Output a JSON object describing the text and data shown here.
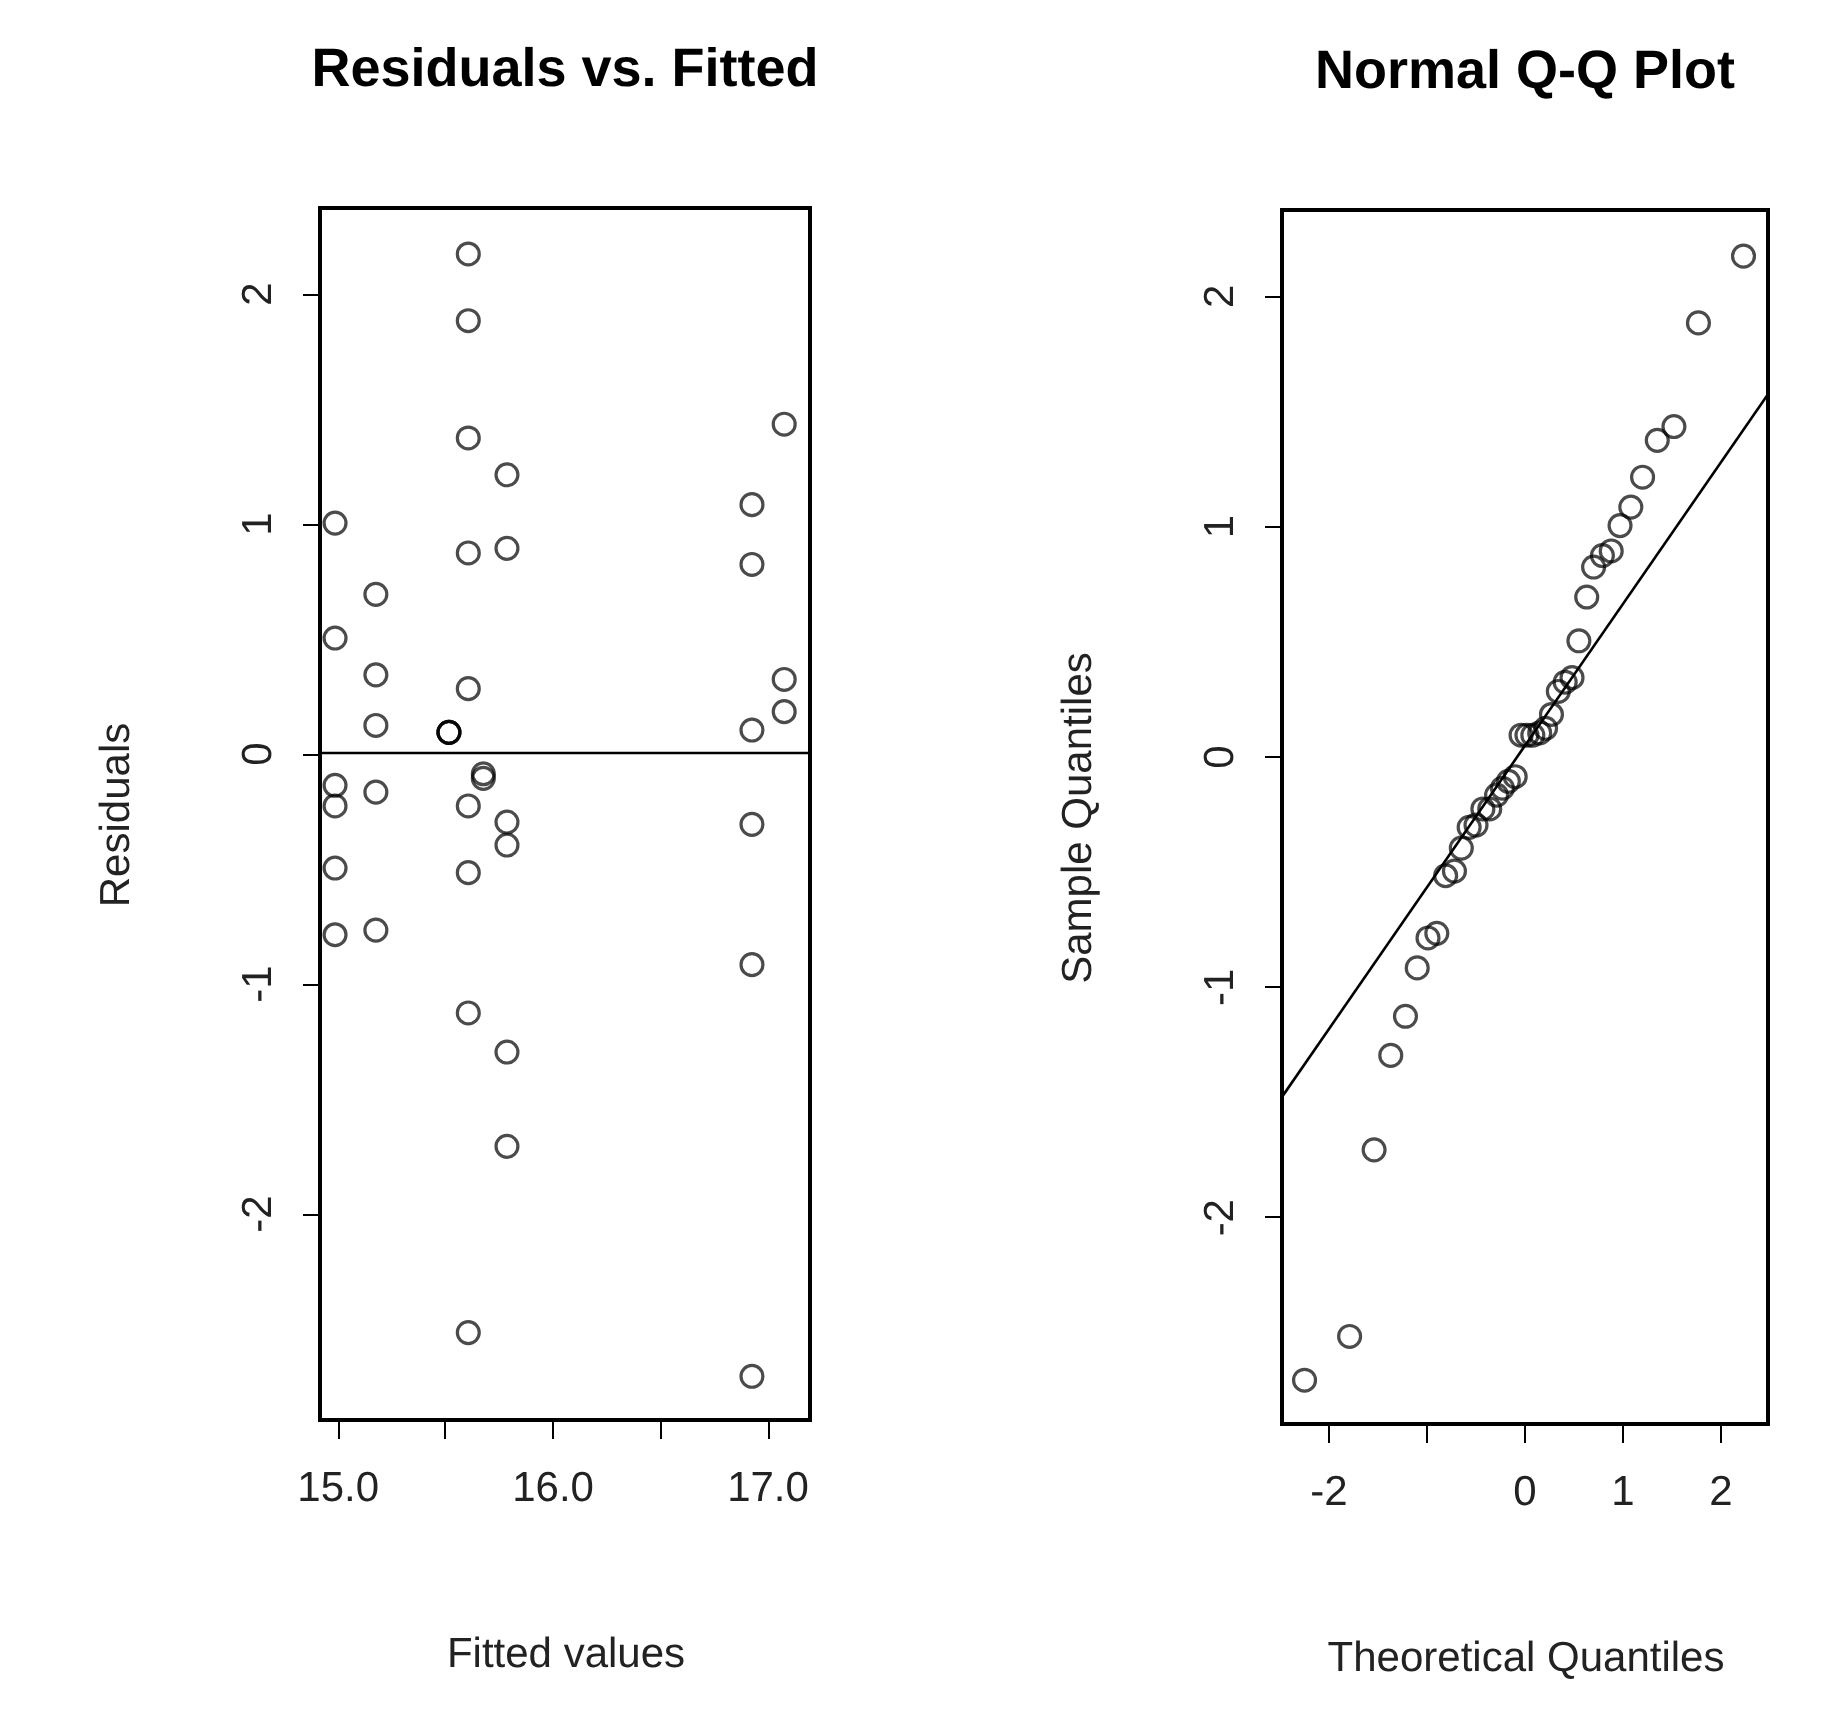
{
  "chart_data": [
    {
      "type": "scatter",
      "title": "Residuals vs. Fitted",
      "xlabel": "Fitted values",
      "ylabel": "Residuals",
      "marker": "circle",
      "grid": false,
      "xlim": [
        14.92,
        17.2
      ],
      "ylim": [
        -2.9,
        2.37
      ],
      "xticks": [
        {
          "value": 15,
          "label": "15.0"
        },
        {
          "value": 15.5,
          "label": null
        },
        {
          "value": 16,
          "label": "16.0"
        },
        {
          "value": 16.5,
          "label": null
        },
        {
          "value": 17,
          "label": "17.0"
        }
      ],
      "yticks": [
        -2,
        -1,
        0,
        1,
        2
      ],
      "ref_lines": [
        {
          "axis": "y",
          "value": 0,
          "color": "#000000"
        }
      ],
      "series": [
        {
          "color": "#000000",
          "x": [
            14.99,
            14.99,
            14.99,
            14.99,
            14.99,
            14.99,
            15.18,
            15.18,
            15.18,
            15.18,
            15.18,
            15.61,
            15.61,
            15.61,
            15.61,
            15.61,
            15.61,
            15.61,
            15.61,
            15.61,
            15.52,
            15.52,
            15.52,
            15.68,
            15.68,
            15.79,
            15.79,
            15.79,
            15.79,
            15.79,
            15.79,
            16.93,
            16.93,
            16.93,
            16.93,
            16.93,
            16.93,
            17.08,
            17.08,
            17.08
          ],
          "values": [
            1.0,
            0.5,
            -0.14,
            -0.23,
            -0.5,
            -0.79,
            0.69,
            0.34,
            0.12,
            -0.17,
            -0.77,
            2.17,
            1.88,
            1.37,
            0.87,
            0.28,
            -0.23,
            -0.52,
            -1.13,
            -2.52,
            0.09,
            0.09,
            0.09,
            -0.09,
            -0.11,
            1.21,
            0.89,
            -0.3,
            -0.4,
            -1.3,
            -1.71,
            1.08,
            0.82,
            0.1,
            -0.31,
            -0.92,
            -2.71,
            1.43,
            0.32,
            0.18
          ]
        }
      ]
    },
    {
      "type": "scatter",
      "title": "Normal Q-Q Plot",
      "xlabel": "Theoretical Quantiles",
      "ylabel": "Sample Quantiles",
      "grid": false,
      "xlim": [
        -2.47,
        2.49
      ],
      "ylim": [
        -2.9,
        2.37
      ],
      "xticks": [
        -2,
        {
          "value": -1,
          "label": null
        },
        0,
        1,
        2
      ],
      "yticks": [
        -2,
        -1,
        0,
        1,
        2
      ],
      "series": [
        {
          "color": "#000000",
          "marker": "circle",
          "x": [
            -2.24,
            -1.78,
            -1.53,
            -1.36,
            -1.21,
            -1.09,
            -0.98,
            -0.89,
            -0.8,
            -0.71,
            -0.64,
            -0.56,
            -0.49,
            -0.42,
            -0.35,
            -0.28,
            -0.22,
            -0.16,
            -0.09,
            -0.03,
            0.03,
            0.09,
            0.16,
            0.22,
            0.28,
            0.35,
            0.42,
            0.49,
            0.56,
            0.64,
            0.71,
            0.8,
            0.89,
            0.98,
            1.09,
            1.21,
            1.36,
            1.53,
            1.78,
            2.24
          ],
          "values": [
            -2.71,
            -2.52,
            -1.71,
            -1.3,
            -1.13,
            -0.92,
            -0.79,
            -0.77,
            -0.52,
            -0.5,
            -0.4,
            -0.31,
            -0.3,
            -0.23,
            -0.23,
            -0.17,
            -0.14,
            -0.11,
            -0.09,
            0.09,
            0.09,
            0.09,
            0.1,
            0.12,
            0.18,
            0.28,
            0.32,
            0.34,
            0.5,
            0.69,
            0.82,
            0.87,
            0.89,
            1.0,
            1.08,
            1.21,
            1.37,
            1.43,
            1.88,
            2.17
          ]
        },
        {
          "type": "line",
          "color": "#000000",
          "x": [
            -2.47,
            2.49
          ],
          "values": [
            -1.48,
            1.57
          ]
        }
      ]
    }
  ]
}
